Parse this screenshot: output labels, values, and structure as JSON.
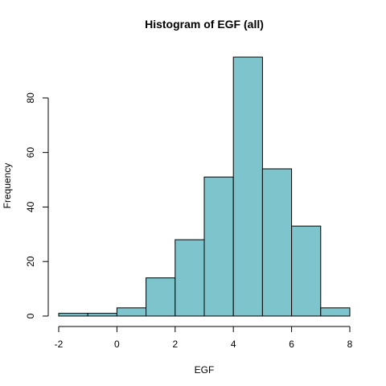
{
  "chart_data": {
    "type": "bar",
    "subtype": "histogram",
    "title": "Histogram of EGF (all)",
    "xlabel": "EGF",
    "ylabel": "Frequency",
    "bins": [
      {
        "start": -2,
        "end": -1,
        "count": 1
      },
      {
        "start": -1,
        "end": 0,
        "count": 1
      },
      {
        "start": 0,
        "end": 1,
        "count": 3
      },
      {
        "start": 1,
        "end": 2,
        "count": 14
      },
      {
        "start": 2,
        "end": 3,
        "count": 28
      },
      {
        "start": 3,
        "end": 4,
        "count": 51
      },
      {
        "start": 4,
        "end": 5,
        "count": 95
      },
      {
        "start": 5,
        "end": 6,
        "count": 54
      },
      {
        "start": 6,
        "end": 7,
        "count": 33
      },
      {
        "start": 7,
        "end": 8,
        "count": 3
      }
    ],
    "xlim": [
      -2,
      8
    ],
    "ylim": [
      0,
      95
    ],
    "xticks": [
      -2,
      0,
      2,
      4,
      6,
      8
    ],
    "yticks": [
      0,
      20,
      40,
      60,
      80
    ],
    "bar_color": "#7ec4cd",
    "grid": false
  }
}
